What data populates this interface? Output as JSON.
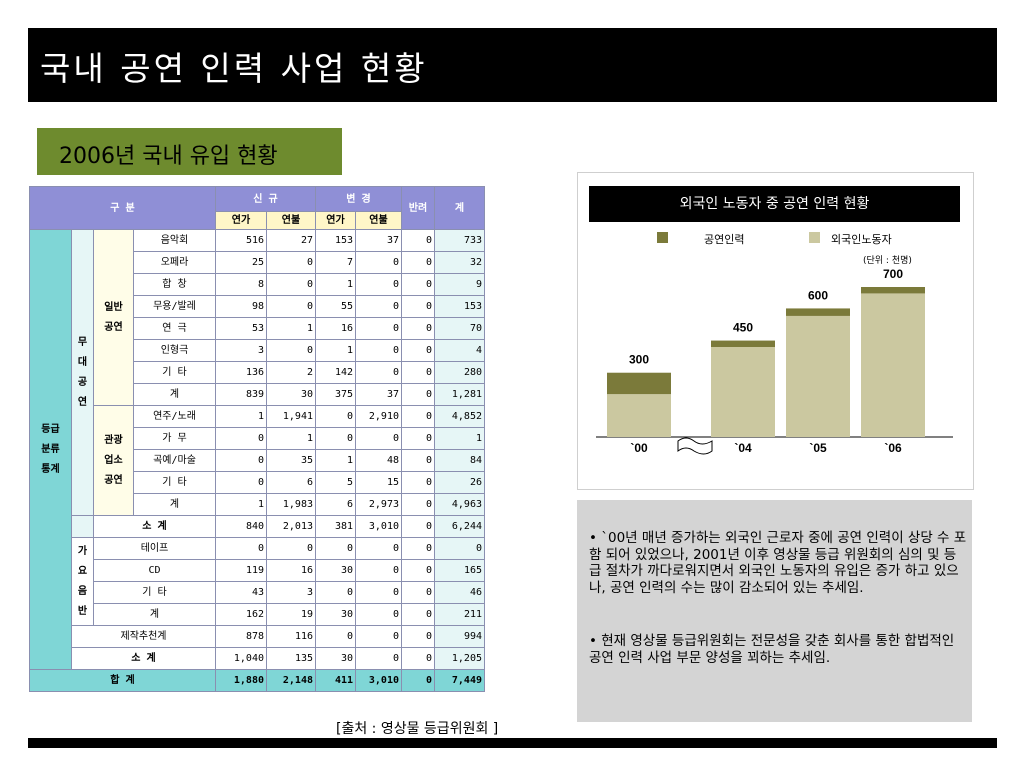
{
  "header": {
    "title": "국내 공연 인력 사업 현황"
  },
  "subtitle": "2006년 국내 유입 현황",
  "table": {
    "h_gubun": "구 분",
    "h_new": "신 규",
    "h_change": "변 경",
    "h_return": "반려",
    "h_total": "계",
    "h_yeonga": "연가",
    "h_yeonbul": "연불",
    "h_yeonga2": "연가",
    "h_yeonbul2": "연불",
    "group_rating": "등급분류통계",
    "group_stage": "무대공연",
    "group_general": "일반공연",
    "group_tourist": "관광업소공연",
    "group_songs": "가요음반",
    "rows": [
      {
        "label": "음악회",
        "v": [
          "516",
          "27",
          "153",
          "37",
          "0",
          "733"
        ]
      },
      {
        "label": "오페라",
        "v": [
          "25",
          "0",
          "7",
          "0",
          "0",
          "32"
        ]
      },
      {
        "label": "합 창",
        "v": [
          "8",
          "0",
          "1",
          "0",
          "0",
          "9"
        ]
      },
      {
        "label": "무용/발레",
        "v": [
          "98",
          "0",
          "55",
          "0",
          "0",
          "153"
        ]
      },
      {
        "label": "연 극",
        "v": [
          "53",
          "1",
          "16",
          "0",
          "0",
          "70"
        ]
      },
      {
        "label": "인형극",
        "v": [
          "3",
          "0",
          "1",
          "0",
          "0",
          "4"
        ]
      },
      {
        "label": "기 타",
        "v": [
          "136",
          "2",
          "142",
          "0",
          "0",
          "280"
        ]
      },
      {
        "label": "계",
        "v": [
          "839",
          "30",
          "375",
          "37",
          "0",
          "1,281"
        ]
      },
      {
        "label": "연주/노래",
        "v": [
          "1",
          "1,941",
          "0",
          "2,910",
          "0",
          "4,852"
        ]
      },
      {
        "label": "가 무",
        "v": [
          "0",
          "1",
          "0",
          "0",
          "0",
          "1"
        ]
      },
      {
        "label": "곡예/마술",
        "v": [
          "0",
          "35",
          "1",
          "48",
          "0",
          "84"
        ]
      },
      {
        "label": "기 타",
        "v": [
          "0",
          "6",
          "5",
          "15",
          "0",
          "26"
        ]
      },
      {
        "label": "계",
        "v": [
          "1",
          "1,983",
          "6",
          "2,973",
          "0",
          "4,963"
        ]
      },
      {
        "label": "소 계",
        "v": [
          "840",
          "2,013",
          "381",
          "3,010",
          "0",
          "6,244"
        ]
      },
      {
        "label": "테이프",
        "v": [
          "0",
          "0",
          "0",
          "0",
          "0",
          "0"
        ]
      },
      {
        "label": "CD",
        "v": [
          "119",
          "16",
          "30",
          "0",
          "0",
          "165"
        ]
      },
      {
        "label": "기 타",
        "v": [
          "43",
          "3",
          "0",
          "0",
          "0",
          "46"
        ]
      },
      {
        "label": "계",
        "v": [
          "162",
          "19",
          "30",
          "0",
          "0",
          "211"
        ]
      },
      {
        "label": "제작추천계",
        "v": [
          "878",
          "116",
          "0",
          "0",
          "0",
          "994"
        ]
      },
      {
        "label": "소 계",
        "v": [
          "1,040",
          "135",
          "30",
          "0",
          "0",
          "1,205"
        ]
      },
      {
        "label": "합 계",
        "v": [
          "1,880",
          "2,148",
          "411",
          "3,010",
          "0",
          "7,449"
        ]
      }
    ]
  },
  "source": "[출처 : 영상물 등급위원회  ]",
  "chart_data": {
    "type": "bar",
    "title": "외국인 노동자 중 공연 인력 현황",
    "unit": "(단위 : 천명)",
    "categories": [
      "`00",
      "`04",
      "`05",
      "`06"
    ],
    "totals": [
      "300",
      "450",
      "600",
      "700"
    ],
    "series": [
      {
        "name": "공연인력",
        "color": "#7b7a3a",
        "values": [
          100,
          30,
          35,
          30
        ]
      },
      {
        "name": "외국인노동자",
        "color": "#cbc8a0",
        "values": [
          200,
          420,
          565,
          670
        ]
      }
    ],
    "ylim": [
      0,
      700
    ]
  },
  "notes": [
    "• `00년 매년 증가하는 외국인 근로자 중에 공연 인력이 상당 수 포함 되어 있었으나, 2001년 이후 영상물 등급 위원회의 심의 및 등급 절차가 까다로워지면서 외국인 노동자의 유입은 증가 하고 있으나, 공연 인력의 수는 많이 감소되어 있는 추세임.",
    "• 현재 영상물 등급위원회는 전문성을 갖춘 회사를 통한 합법적인 공연 인력 사업 부문 양성을 꾀하는 추세임."
  ]
}
